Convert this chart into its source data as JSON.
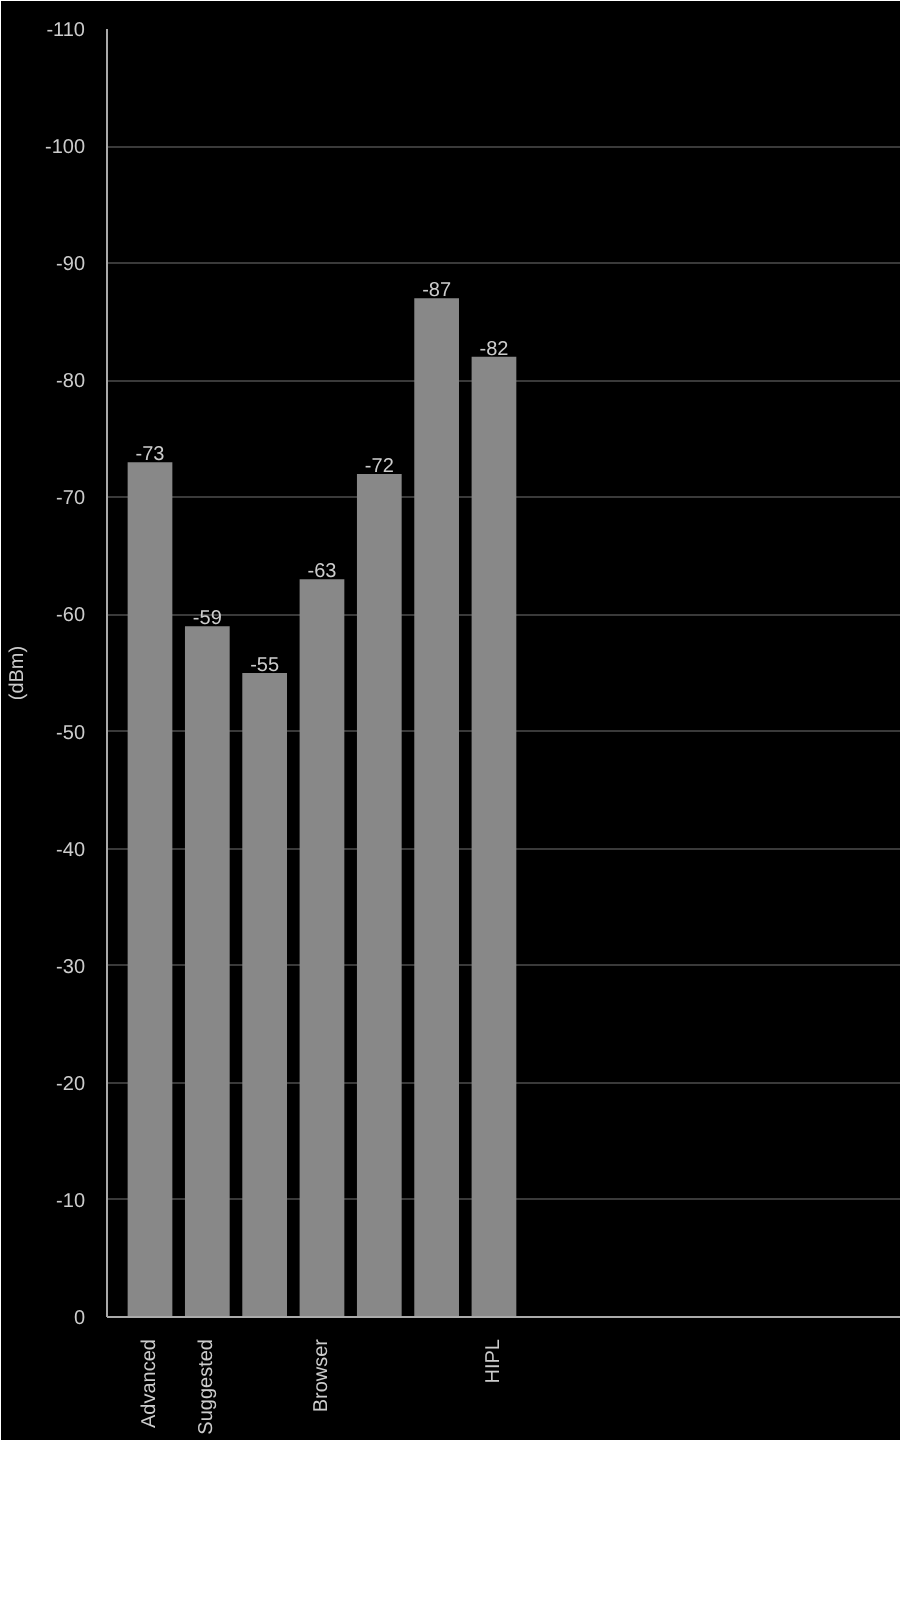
{
  "chart_data": {
    "type": "bar",
    "ylabel": "(dBm)",
    "categories": [
      "Advanced",
      "Suggested",
      null,
      "Browser",
      null,
      null,
      "HIPL"
    ],
    "values": [
      -73,
      -59,
      -55,
      -63,
      -72,
      -87,
      -82
    ],
    "color": "#888888",
    "ylim": [
      0,
      -110
    ],
    "yticks": [
      0,
      -10,
      -20,
      -30,
      -40,
      -50,
      -60,
      -70,
      -80,
      -90,
      -100,
      -110
    ],
    "grid": "y",
    "data_labels": true
  }
}
